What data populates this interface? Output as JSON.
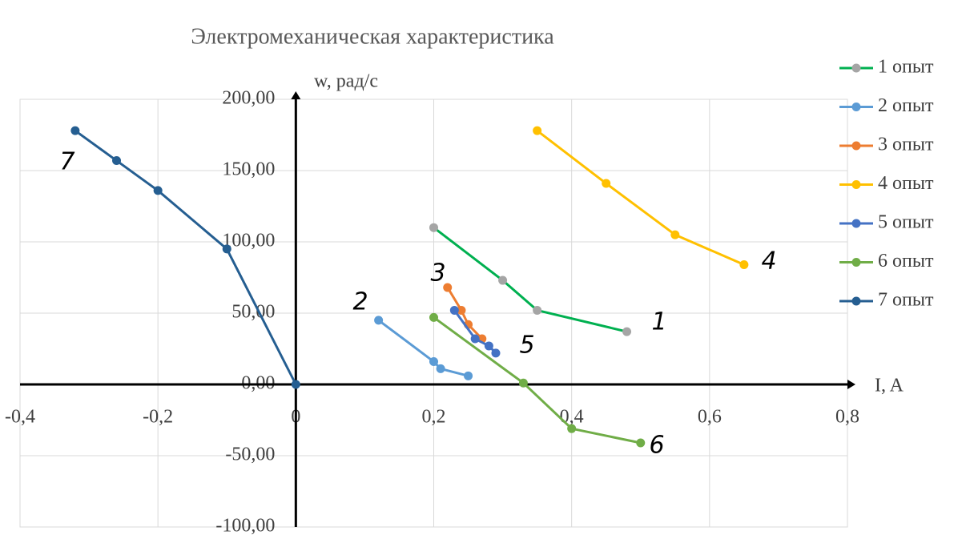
{
  "chart_data": {
    "type": "line",
    "title": "Электромеханическая характеристика",
    "x_label": "I, A",
    "y_label": "w, рад/с",
    "xlim": [
      -0.4,
      0.8
    ],
    "ylim": [
      -100,
      200
    ],
    "xticks": [
      {
        "value": -0.4,
        "label": "-0,4"
      },
      {
        "value": -0.2,
        "label": "-0,2"
      },
      0,
      {
        "value": 0.2,
        "label": "0,2"
      },
      {
        "value": 0.4,
        "label": "0,4"
      },
      {
        "value": 0.6,
        "label": "0,6"
      },
      {
        "value": 0.8,
        "label": "0,8"
      }
    ],
    "yticks": [
      {
        "value": -100,
        "label": "-100,00"
      },
      {
        "value": -50,
        "label": "-50,00"
      },
      {
        "value": 0,
        "label": "0,00"
      },
      {
        "value": 50,
        "label": "50,00"
      },
      {
        "value": 100,
        "label": "100,00"
      },
      {
        "value": 150,
        "label": "150,00"
      },
      {
        "value": 200,
        "label": "200,00"
      }
    ],
    "grid": true,
    "legend": "right",
    "series": [
      {
        "name": "1 опыт",
        "color": "#00b050",
        "marker_color": "#a5a5a5",
        "x": [
          0.2,
          0.3,
          0.35,
          0.48
        ],
        "values": [
          110,
          73,
          52,
          37
        ]
      },
      {
        "name": "2 опыт",
        "color": "#5b9bd5",
        "x": [
          0.12,
          0.2,
          0.21,
          0.25
        ],
        "values": [
          45,
          16,
          11,
          6
        ]
      },
      {
        "name": "3 опыт",
        "color": "#ed7d31",
        "x": [
          0.22,
          0.24,
          0.25,
          0.27
        ],
        "values": [
          68,
          52,
          42,
          32
        ]
      },
      {
        "name": "4 опыт",
        "color": "#ffc000",
        "x": [
          0.35,
          0.45,
          0.55,
          0.65
        ],
        "values": [
          178,
          141,
          105,
          84
        ]
      },
      {
        "name": "5 опыт",
        "color": "#4472c4",
        "x": [
          0.23,
          0.26,
          0.28,
          0.29
        ],
        "values": [
          52,
          32,
          27,
          22
        ]
      },
      {
        "name": "6 опыт",
        "color": "#70ad47",
        "x": [
          0.2,
          0.33,
          0.4,
          0.5
        ],
        "values": [
          47,
          1,
          -31,
          -41
        ]
      },
      {
        "name": "7 опыт",
        "color": "#255e91",
        "x": [
          -0.32,
          -0.26,
          -0.2,
          -0.1,
          0
        ],
        "values": [
          178,
          157,
          136,
          95,
          0
        ]
      }
    ],
    "annotations": [
      "1",
      "2",
      "3",
      "4",
      "5",
      "6",
      "7"
    ]
  }
}
